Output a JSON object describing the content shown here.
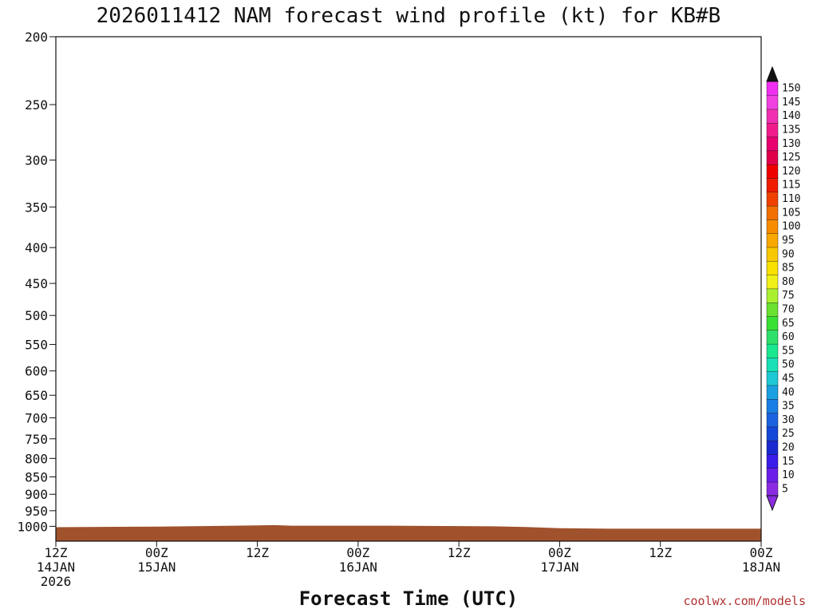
{
  "title": "2026011412 NAM forecast wind profile (kt) for KB#B",
  "xlabel": "Forecast Time (UTC)",
  "credit": "coolwx.com/models",
  "chart_data": {
    "type": "wind-profile",
    "title": "2026011412 NAM forecast wind profile (kt) for KB#B",
    "xlabel": "Forecast Time (UTC)",
    "ylabel": "",
    "y_axis": {
      "unit": "hPa",
      "scale": "log",
      "range": [
        1050,
        200
      ],
      "ticks": [
        200,
        250,
        300,
        350,
        400,
        450,
        500,
        550,
        600,
        650,
        700,
        750,
        800,
        850,
        900,
        950,
        1000
      ]
    },
    "x_axis": {
      "unit": "forecast hour",
      "range": [
        0,
        84
      ],
      "ticks": [
        {
          "hour": 0,
          "lines": [
            "12Z",
            "14JAN",
            "2026"
          ]
        },
        {
          "hour": 12,
          "lines": [
            "00Z",
            "15JAN"
          ]
        },
        {
          "hour": 24,
          "lines": [
            "12Z"
          ]
        },
        {
          "hour": 36,
          "lines": [
            "00Z",
            "16JAN"
          ]
        },
        {
          "hour": 48,
          "lines": [
            "12Z"
          ]
        },
        {
          "hour": 60,
          "lines": [
            "00Z",
            "17JAN"
          ]
        },
        {
          "hour": 72,
          "lines": [
            "12Z"
          ]
        },
        {
          "hour": 84,
          "lines": [
            "00Z",
            "18JAN"
          ]
        }
      ]
    },
    "terrain": {
      "color": "#a0522d",
      "surface_pressure": [
        {
          "hour": 0,
          "hPa": 1003
        },
        {
          "hour": 12,
          "hPa": 1001
        },
        {
          "hour": 24,
          "hPa": 997
        },
        {
          "hour": 26,
          "hPa": 996
        },
        {
          "hour": 28,
          "hPa": 998
        },
        {
          "hour": 40,
          "hPa": 998
        },
        {
          "hour": 46,
          "hPa": 999
        },
        {
          "hour": 52,
          "hPa": 1000
        },
        {
          "hour": 56,
          "hPa": 1002
        },
        {
          "hour": 60,
          "hPa": 1006
        },
        {
          "hour": 66,
          "hPa": 1008
        },
        {
          "hour": 84,
          "hPa": 1008
        }
      ]
    },
    "colorbar": {
      "unit": "kt",
      "levels": [
        5,
        10,
        15,
        20,
        25,
        30,
        35,
        40,
        45,
        50,
        55,
        60,
        65,
        70,
        75,
        80,
        85,
        90,
        95,
        100,
        105,
        110,
        115,
        120,
        125,
        130,
        135,
        140,
        145,
        150
      ],
      "colors": [
        "#8a2be2",
        "#6a1ee8",
        "#3a1ce8",
        "#1a28d0",
        "#1446d8",
        "#1a62e0",
        "#1a7ee4",
        "#1aa0e0",
        "#1ec8d4",
        "#18e0b4",
        "#1ae890",
        "#2ee06a",
        "#3ae034",
        "#6ae030",
        "#aaf030",
        "#f0f018",
        "#f8e000",
        "#f8c800",
        "#f8a800",
        "#f88c00",
        "#f07000",
        "#f04000",
        "#f01c00",
        "#ee0000",
        "#e0004a",
        "#e80070",
        "#f01c8c",
        "#f030b0",
        "#f040e0",
        "#f030f0"
      ]
    },
    "series": []
  }
}
